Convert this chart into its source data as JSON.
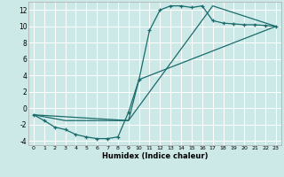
{
  "bg_color": "#cce9e8",
  "line_color": "#1a6b6b",
  "grid_color": "#ffffff",
  "xlabel": "Humidex (Indice chaleur)",
  "xlim": [
    -0.5,
    23.5
  ],
  "ylim": [
    -4.5,
    13.0
  ],
  "xticks": [
    0,
    1,
    2,
    3,
    4,
    5,
    6,
    7,
    8,
    9,
    10,
    11,
    12,
    13,
    14,
    15,
    16,
    17,
    18,
    19,
    20,
    21,
    22,
    23
  ],
  "yticks": [
    -4,
    -2,
    0,
    2,
    4,
    6,
    8,
    10,
    12
  ],
  "curve1_x": [
    0,
    1,
    2,
    3,
    4,
    5,
    6,
    7,
    8,
    9,
    10,
    11,
    12,
    13,
    14,
    15,
    16,
    17,
    18,
    19,
    20,
    21,
    22,
    23
  ],
  "curve1_y": [
    -0.8,
    -1.5,
    -2.3,
    -2.6,
    -3.2,
    -3.5,
    -3.7,
    -3.7,
    -3.5,
    -0.5,
    3.5,
    9.5,
    12.0,
    12.5,
    12.5,
    12.3,
    12.5,
    10.7,
    10.4,
    10.3,
    10.2,
    10.2,
    10.1,
    10.0
  ],
  "line2_x": [
    0,
    9,
    10,
    23
  ],
  "line2_y": [
    -0.8,
    -1.5,
    3.5,
    10.0
  ],
  "line3_x": [
    0,
    3,
    9,
    17,
    23
  ],
  "line3_y": [
    -0.8,
    -1.5,
    -1.5,
    12.5,
    10.0
  ]
}
